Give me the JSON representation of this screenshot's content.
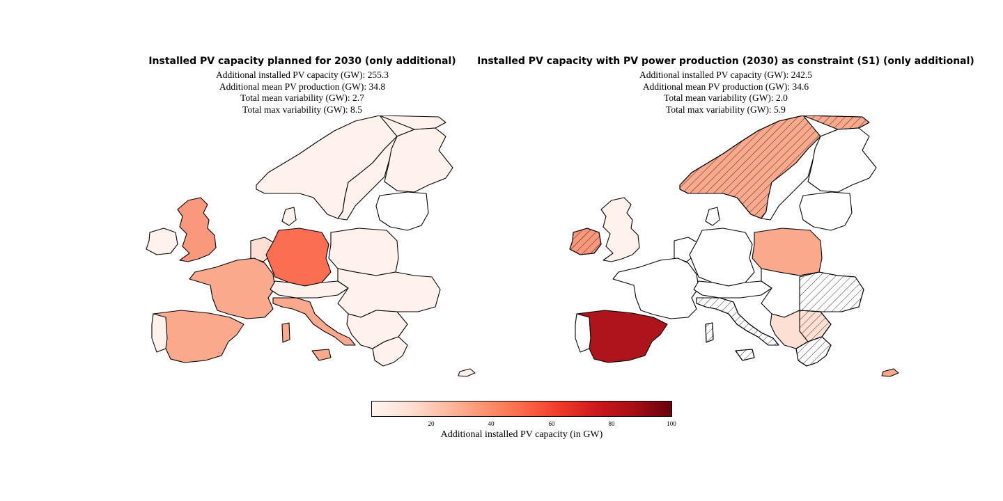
{
  "left_panel": {
    "title": "Installed PV capacity planned for 2030 (only additional)",
    "stats": [
      "Additional installed PV capacity (GW): 255.3",
      "Additional mean PV production (GW): 34.8",
      "Total mean variability (GW): 2.7",
      "Total max variability (GW): 8.5"
    ]
  },
  "right_panel": {
    "title": "Installed PV capacity with PV power production (2030) as constraint (S1) (only additional)",
    "stats": [
      "Additional installed PV capacity (GW): 242.5",
      "Additional mean PV production (GW): 34.6",
      "Total mean variability (GW): 2.0",
      "Total max variability (GW): 5.9"
    ]
  },
  "colorbar": {
    "label": "Additional installed PV capacity (in GW)",
    "colormap": "Reds",
    "range": [
      0,
      100
    ],
    "ticks": [
      "20",
      "40",
      "60",
      "80",
      "100"
    ]
  },
  "colors": {
    "very_light": "#fff1ec",
    "light": "#fde0d3",
    "pale": "#fcc2a8",
    "mid": "#fba98c",
    "salmon": "#f9987c",
    "orange_red": "#fc6e51",
    "dark_red": "#ad141b",
    "no_data": "#ffffff"
  },
  "hatch_meaning_visible": false
}
